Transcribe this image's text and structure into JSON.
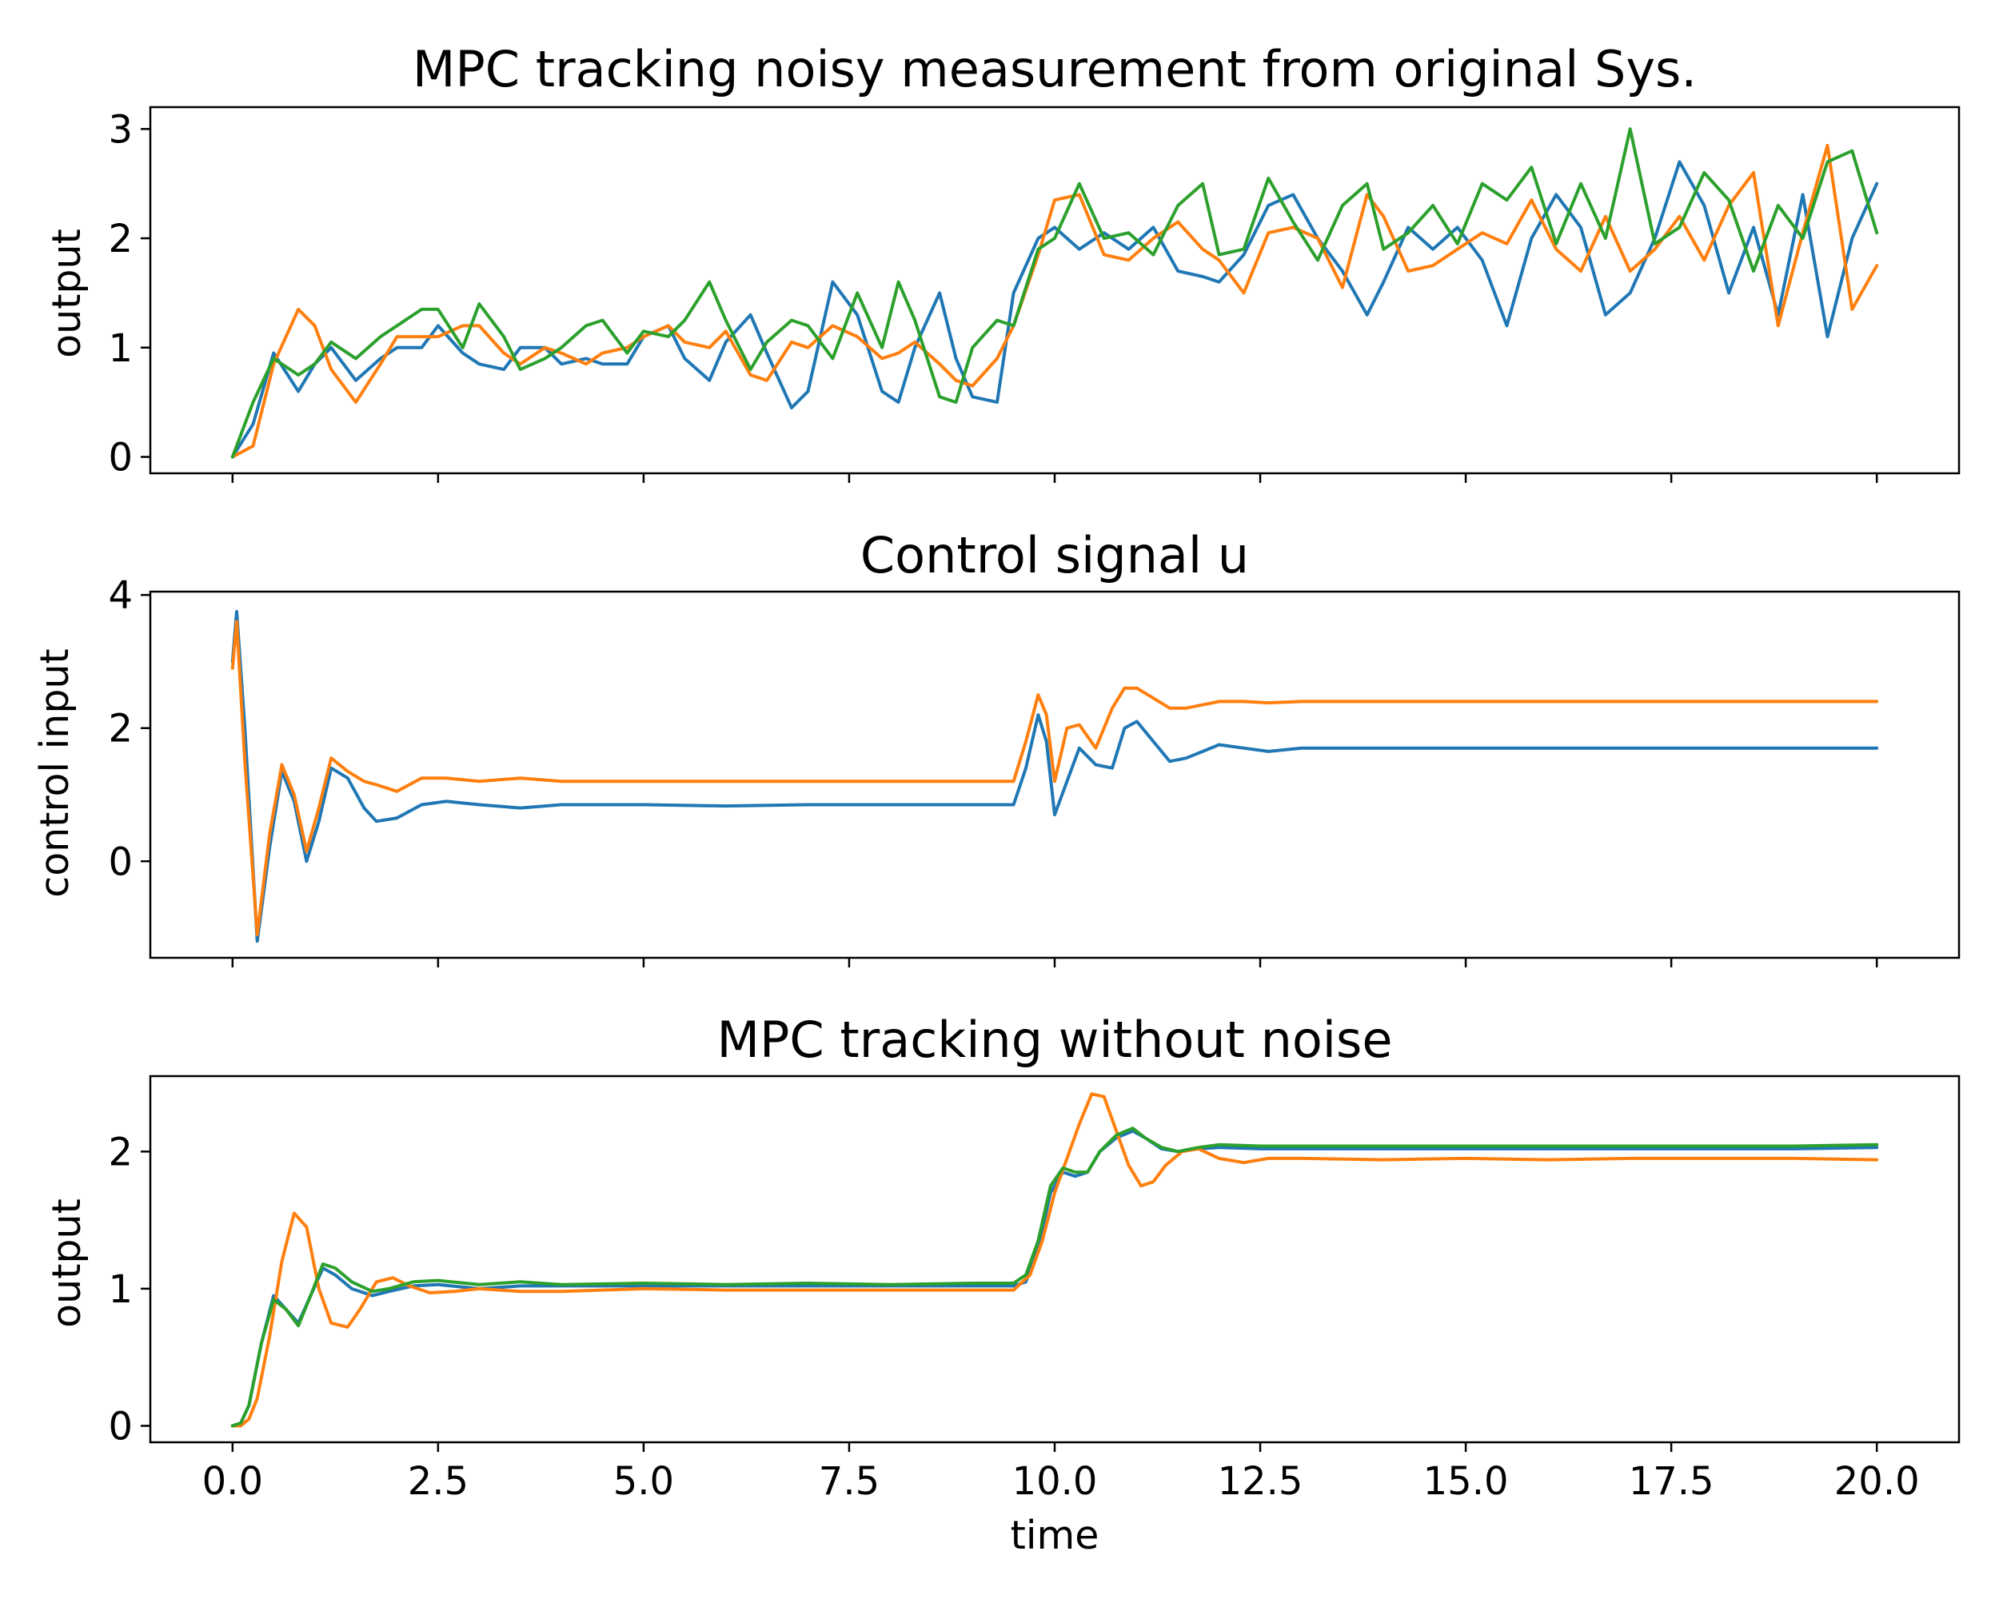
{
  "colors": {
    "blue": "#1f77b4",
    "orange": "#ff7f0e",
    "green": "#2ca02c"
  },
  "chart_data": [
    {
      "type": "line",
      "title": "MPC tracking noisy measurement from original Sys.",
      "xlabel": "",
      "ylabel": "output",
      "xlim": [
        -1.0,
        21.0
      ],
      "ylim": [
        -0.15,
        3.2
      ],
      "x_ticks": [
        0.0,
        2.5,
        5.0,
        7.5,
        10.0,
        12.5,
        15.0,
        17.5,
        20.0
      ],
      "x_tick_labels_visible": false,
      "y_ticks": [
        0,
        1,
        2,
        3
      ],
      "y_tick_labels": [
        "0",
        "1",
        "2",
        "3"
      ],
      "grid": false,
      "series": [
        {
          "color": "#1f77b4",
          "x": [
            0,
            0.25,
            0.5,
            0.8,
            1.0,
            1.2,
            1.5,
            1.8,
            2.0,
            2.3,
            2.5,
            2.8,
            3.0,
            3.3,
            3.5,
            3.8,
            4.0,
            4.3,
            4.5,
            4.8,
            5.0,
            5.3,
            5.5,
            5.8,
            6.0,
            6.3,
            6.5,
            6.8,
            7.0,
            7.3,
            7.6,
            7.9,
            8.1,
            8.3,
            8.6,
            8.8,
            9.0,
            9.3,
            9.5,
            9.8,
            10.0,
            10.3,
            10.6,
            10.9,
            11.2,
            11.5,
            11.8,
            12.0,
            12.3,
            12.6,
            12.9,
            13.2,
            13.5,
            13.8,
            14.0,
            14.3,
            14.6,
            14.9,
            15.2,
            15.5,
            15.8,
            16.1,
            16.4,
            16.7,
            17.0,
            17.3,
            17.6,
            17.9,
            18.2,
            18.5,
            18.8,
            19.1,
            19.4,
            19.7,
            20.0
          ],
          "y": [
            0,
            0.3,
            0.95,
            0.6,
            0.85,
            1.0,
            0.7,
            0.9,
            1.0,
            1.0,
            1.2,
            0.95,
            0.85,
            0.8,
            1.0,
            1.0,
            0.85,
            0.9,
            0.85,
            0.85,
            1.1,
            1.2,
            0.9,
            0.7,
            1.05,
            1.3,
            0.95,
            0.45,
            0.6,
            1.6,
            1.3,
            0.6,
            0.5,
            1.0,
            1.5,
            0.9,
            0.55,
            0.5,
            1.5,
            2.0,
            2.1,
            1.9,
            2.05,
            1.9,
            2.1,
            1.7,
            1.65,
            1.6,
            1.85,
            2.3,
            2.4,
            2.0,
            1.7,
            1.3,
            1.6,
            2.1,
            1.9,
            2.1,
            1.8,
            1.2,
            2.0,
            2.4,
            2.1,
            1.3,
            1.5,
            2.0,
            2.7,
            2.3,
            1.5,
            2.1,
            1.3,
            2.4,
            1.1,
            2.0,
            2.5
          ]
        },
        {
          "color": "#ff7f0e",
          "x": [
            0,
            0.25,
            0.5,
            0.8,
            1.0,
            1.2,
            1.5,
            1.8,
            2.0,
            2.3,
            2.5,
            2.8,
            3.0,
            3.3,
            3.5,
            3.8,
            4.0,
            4.3,
            4.5,
            4.8,
            5.0,
            5.3,
            5.5,
            5.8,
            6.0,
            6.3,
            6.5,
            6.8,
            7.0,
            7.3,
            7.6,
            7.9,
            8.1,
            8.3,
            8.6,
            8.8,
            9.0,
            9.3,
            9.5,
            9.8,
            10.0,
            10.3,
            10.6,
            10.9,
            11.2,
            11.5,
            11.8,
            12.0,
            12.3,
            12.6,
            12.9,
            13.2,
            13.5,
            13.8,
            14.0,
            14.3,
            14.6,
            14.9,
            15.2,
            15.5,
            15.8,
            16.1,
            16.4,
            16.7,
            17.0,
            17.3,
            17.6,
            17.9,
            18.2,
            18.5,
            18.8,
            19.1,
            19.4,
            19.7,
            20.0
          ],
          "y": [
            0,
            0.1,
            0.85,
            1.35,
            1.2,
            0.8,
            0.5,
            0.85,
            1.1,
            1.1,
            1.1,
            1.2,
            1.2,
            0.95,
            0.85,
            1.0,
            0.95,
            0.85,
            0.95,
            1.0,
            1.1,
            1.2,
            1.05,
            1.0,
            1.15,
            0.75,
            0.7,
            1.05,
            1.0,
            1.2,
            1.1,
            0.9,
            0.95,
            1.05,
            0.85,
            0.7,
            0.65,
            0.9,
            1.2,
            1.85,
            2.35,
            2.4,
            1.85,
            1.8,
            2.0,
            2.15,
            1.9,
            1.8,
            1.5,
            2.05,
            2.1,
            2.0,
            1.55,
            2.4,
            2.2,
            1.7,
            1.75,
            1.9,
            2.05,
            1.95,
            2.35,
            1.9,
            1.7,
            2.2,
            1.7,
            1.9,
            2.2,
            1.8,
            2.3,
            2.6,
            1.2,
            2.05,
            2.85,
            1.35,
            1.75
          ]
        },
        {
          "color": "#2ca02c",
          "x": [
            0,
            0.25,
            0.5,
            0.8,
            1.0,
            1.2,
            1.5,
            1.8,
            2.0,
            2.3,
            2.5,
            2.8,
            3.0,
            3.3,
            3.5,
            3.8,
            4.0,
            4.3,
            4.5,
            4.8,
            5.0,
            5.3,
            5.5,
            5.8,
            6.0,
            6.3,
            6.5,
            6.8,
            7.0,
            7.3,
            7.6,
            7.9,
            8.1,
            8.3,
            8.6,
            8.8,
            9.0,
            9.3,
            9.5,
            9.8,
            10.0,
            10.3,
            10.6,
            10.9,
            11.2,
            11.5,
            11.8,
            12.0,
            12.3,
            12.6,
            12.9,
            13.2,
            13.5,
            13.8,
            14.0,
            14.3,
            14.6,
            14.9,
            15.2,
            15.5,
            15.8,
            16.1,
            16.4,
            16.7,
            17.0,
            17.3,
            17.6,
            17.9,
            18.2,
            18.5,
            18.8,
            19.1,
            19.4,
            19.7,
            20.0
          ],
          "y": [
            0,
            0.5,
            0.9,
            0.75,
            0.85,
            1.05,
            0.9,
            1.1,
            1.2,
            1.35,
            1.35,
            1.0,
            1.4,
            1.1,
            0.8,
            0.9,
            1.0,
            1.2,
            1.25,
            0.95,
            1.15,
            1.1,
            1.25,
            1.6,
            1.25,
            0.8,
            1.05,
            1.25,
            1.2,
            0.9,
            1.5,
            1.0,
            1.6,
            1.25,
            0.55,
            0.5,
            1.0,
            1.25,
            1.2,
            1.9,
            2.0,
            2.5,
            2.0,
            2.05,
            1.85,
            2.3,
            2.5,
            1.85,
            1.9,
            2.55,
            2.15,
            1.8,
            2.3,
            2.5,
            1.9,
            2.05,
            2.3,
            1.95,
            2.5,
            2.35,
            2.65,
            1.95,
            2.5,
            2.0,
            3.0,
            1.95,
            2.1,
            2.6,
            2.35,
            1.7,
            2.3,
            2.0,
            2.7,
            2.8,
            2.05
          ]
        }
      ]
    },
    {
      "type": "line",
      "title": "Control signal u",
      "xlabel": "",
      "ylabel": "control input",
      "xlim": [
        -1.0,
        21.0
      ],
      "ylim": [
        -1.45,
        4.05
      ],
      "x_ticks": [
        0.0,
        2.5,
        5.0,
        7.5,
        10.0,
        12.5,
        15.0,
        17.5,
        20.0
      ],
      "x_tick_labels_visible": false,
      "y_ticks": [
        0,
        2,
        4
      ],
      "y_tick_labels": [
        "0",
        "2",
        "4"
      ],
      "grid": false,
      "series": [
        {
          "color": "#1f77b4",
          "x": [
            0,
            0.05,
            0.15,
            0.3,
            0.45,
            0.6,
            0.75,
            0.9,
            1.05,
            1.2,
            1.4,
            1.6,
            1.75,
            2.0,
            2.3,
            2.6,
            3.0,
            3.5,
            4,
            5,
            6,
            7,
            8,
            9,
            9.5,
            9.65,
            9.8,
            9.9,
            10.0,
            10.15,
            10.3,
            10.5,
            10.7,
            10.85,
            11.0,
            11.2,
            11.4,
            11.6,
            11.8,
            12.0,
            12.3,
            12.6,
            13,
            14,
            15,
            16,
            17,
            18,
            19,
            20
          ],
          "y": [
            3.0,
            3.75,
            2.0,
            -1.2,
            0.2,
            1.35,
            0.9,
            0.0,
            0.6,
            1.4,
            1.25,
            0.8,
            0.6,
            0.65,
            0.85,
            0.9,
            0.85,
            0.8,
            0.85,
            0.85,
            0.83,
            0.85,
            0.85,
            0.85,
            0.85,
            1.4,
            2.2,
            1.8,
            0.7,
            1.2,
            1.7,
            1.45,
            1.4,
            2.0,
            2.1,
            1.8,
            1.5,
            1.55,
            1.65,
            1.75,
            1.7,
            1.65,
            1.7,
            1.7,
            1.7,
            1.7,
            1.7,
            1.7,
            1.7,
            1.7
          ]
        },
        {
          "color": "#ff7f0e",
          "x": [
            0,
            0.05,
            0.15,
            0.3,
            0.45,
            0.6,
            0.75,
            0.9,
            1.05,
            1.2,
            1.4,
            1.6,
            1.75,
            2.0,
            2.3,
            2.6,
            3.0,
            3.5,
            4,
            5,
            6,
            7,
            8,
            9,
            9.5,
            9.65,
            9.8,
            9.9,
            10.0,
            10.15,
            10.3,
            10.5,
            10.7,
            10.85,
            11.0,
            11.2,
            11.4,
            11.6,
            11.8,
            12.0,
            12.3,
            12.6,
            13,
            14,
            15,
            16,
            17,
            18,
            19,
            20
          ],
          "y": [
            2.9,
            3.6,
            1.5,
            -1.1,
            0.4,
            1.45,
            1.0,
            0.15,
            0.8,
            1.55,
            1.35,
            1.2,
            1.15,
            1.05,
            1.25,
            1.25,
            1.2,
            1.25,
            1.2,
            1.2,
            1.2,
            1.2,
            1.2,
            1.2,
            1.2,
            1.8,
            2.5,
            2.2,
            1.2,
            2.0,
            2.05,
            1.7,
            2.3,
            2.6,
            2.6,
            2.45,
            2.3,
            2.3,
            2.35,
            2.4,
            2.4,
            2.38,
            2.4,
            2.4,
            2.4,
            2.4,
            2.4,
            2.4,
            2.4,
            2.4
          ]
        }
      ]
    },
    {
      "type": "line",
      "title": "MPC tracking without noise",
      "xlabel": "time",
      "ylabel": "output",
      "xlim": [
        -1.0,
        21.0
      ],
      "ylim": [
        -0.12,
        2.55
      ],
      "x_ticks": [
        0.0,
        2.5,
        5.0,
        7.5,
        10.0,
        12.5,
        15.0,
        17.5,
        20.0
      ],
      "x_tick_labels": [
        "0.0",
        "2.5",
        "5.0",
        "7.5",
        "10.0",
        "12.5",
        "15.0",
        "17.5",
        "20.0"
      ],
      "y_ticks": [
        0,
        1,
        2
      ],
      "y_tick_labels": [
        "0",
        "1",
        "2"
      ],
      "grid": false,
      "series": [
        {
          "color": "#1f77b4",
          "x": [
            0,
            0.1,
            0.2,
            0.35,
            0.5,
            0.65,
            0.8,
            0.95,
            1.1,
            1.25,
            1.45,
            1.7,
            1.9,
            2.2,
            2.5,
            3.0,
            3.5,
            4,
            5,
            6,
            7,
            8,
            9,
            9.5,
            9.65,
            9.8,
            9.95,
            10.1,
            10.25,
            10.4,
            10.55,
            10.75,
            10.95,
            11.1,
            11.3,
            11.5,
            11.75,
            12.0,
            12.5,
            13,
            14,
            15,
            16,
            17,
            18,
            19,
            20
          ],
          "y": [
            0,
            0.02,
            0.15,
            0.6,
            0.95,
            0.85,
            0.75,
            0.95,
            1.15,
            1.1,
            1.0,
            0.95,
            0.98,
            1.02,
            1.03,
            1.0,
            1.02,
            1.02,
            1.02,
            1.02,
            1.02,
            1.02,
            1.02,
            1.02,
            1.05,
            1.3,
            1.7,
            1.85,
            1.82,
            1.85,
            2.0,
            2.1,
            2.15,
            2.1,
            2.02,
            2.0,
            2.02,
            2.03,
            2.02,
            2.02,
            2.02,
            2.02,
            2.02,
            2.02,
            2.02,
            2.02,
            2.03
          ]
        },
        {
          "color": "#ff7f0e",
          "x": [
            0,
            0.1,
            0.2,
            0.3,
            0.45,
            0.6,
            0.75,
            0.9,
            1.05,
            1.2,
            1.4,
            1.55,
            1.75,
            1.95,
            2.15,
            2.4,
            2.7,
            3.0,
            3.5,
            4,
            5,
            6,
            7,
            8,
            9,
            9.5,
            9.7,
            9.85,
            10.0,
            10.15,
            10.3,
            10.45,
            10.6,
            10.75,
            10.9,
            11.05,
            11.2,
            11.35,
            11.55,
            11.75,
            12.0,
            12.3,
            12.6,
            13,
            14,
            15,
            16,
            17,
            18,
            19,
            20
          ],
          "y": [
            0,
            0.0,
            0.05,
            0.2,
            0.65,
            1.2,
            1.55,
            1.45,
            1.0,
            0.75,
            0.72,
            0.85,
            1.05,
            1.08,
            1.02,
            0.97,
            0.98,
            1.0,
            0.98,
            0.98,
            1.0,
            0.99,
            0.99,
            0.99,
            0.99,
            0.99,
            1.1,
            1.35,
            1.7,
            1.95,
            2.2,
            2.42,
            2.4,
            2.15,
            1.9,
            1.75,
            1.78,
            1.9,
            2.0,
            2.02,
            1.95,
            1.92,
            1.95,
            1.95,
            1.94,
            1.95,
            1.94,
            1.95,
            1.95,
            1.95,
            1.94
          ]
        },
        {
          "color": "#2ca02c",
          "x": [
            0,
            0.1,
            0.2,
            0.35,
            0.5,
            0.65,
            0.8,
            0.95,
            1.1,
            1.25,
            1.45,
            1.7,
            1.9,
            2.2,
            2.5,
            3.0,
            3.5,
            4,
            5,
            6,
            7,
            8,
            9,
            9.5,
            9.65,
            9.8,
            9.95,
            10.1,
            10.25,
            10.4,
            10.55,
            10.75,
            10.95,
            11.1,
            11.3,
            11.5,
            11.75,
            12.0,
            12.5,
            13,
            14,
            15,
            16,
            17,
            18,
            19,
            20
          ],
          "y": [
            0,
            0.02,
            0.15,
            0.6,
            0.92,
            0.85,
            0.73,
            0.95,
            1.18,
            1.15,
            1.05,
            0.98,
            1.0,
            1.05,
            1.06,
            1.03,
            1.05,
            1.03,
            1.04,
            1.03,
            1.04,
            1.03,
            1.04,
            1.04,
            1.1,
            1.35,
            1.75,
            1.88,
            1.85,
            1.85,
            2.0,
            2.12,
            2.17,
            2.1,
            2.03,
            2.0,
            2.03,
            2.05,
            2.04,
            2.04,
            2.04,
            2.04,
            2.04,
            2.04,
            2.04,
            2.04,
            2.05
          ]
        }
      ]
    }
  ]
}
